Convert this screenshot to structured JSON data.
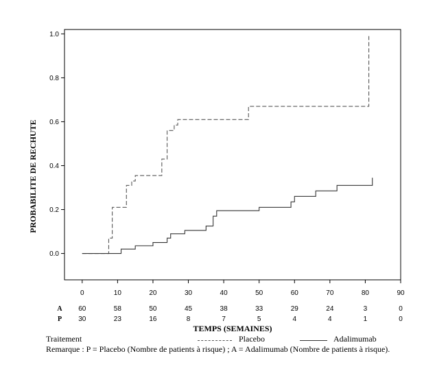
{
  "chart_data": {
    "type": "line",
    "step": true,
    "xlabel": "TEMPS (SEMAINES)",
    "ylabel": "PROBABILITE DE RECHUTE",
    "xlim": [
      -5,
      90
    ],
    "ylim": [
      -0.12,
      1.02
    ],
    "xticks": [
      0,
      10,
      20,
      30,
      40,
      50,
      60,
      70,
      80,
      90
    ],
    "xtick_labels": [
      "0",
      "10",
      "20",
      "30",
      "40",
      "50",
      "60",
      "70",
      "80",
      "90"
    ],
    "yticks": [
      0.0,
      0.2,
      0.4,
      0.6,
      0.8,
      1.0
    ],
    "ytick_labels": [
      "0.0",
      "0.2",
      "0.4",
      "0.6",
      "0.8",
      "1.0"
    ],
    "grid": false,
    "series": [
      {
        "name": "Placebo",
        "style": "dashed",
        "color": "#555555",
        "x": [
          0,
          7,
          7.5,
          8.5,
          10,
          12,
          12.5,
          14,
          15,
          22,
          22.5,
          23.5,
          24,
          26,
          27,
          47,
          81,
          81
        ],
        "y": [
          0,
          0,
          0.07,
          0.21,
          0.21,
          0.21,
          0.31,
          0.33,
          0.355,
          0.355,
          0.43,
          0.43,
          0.56,
          0.585,
          0.61,
          0.67,
          0.67,
          0.99
        ]
      },
      {
        "name": "Adalimumab",
        "style": "solid",
        "color": "#333333",
        "x": [
          0,
          7,
          10,
          11,
          15,
          20,
          24,
          25,
          29,
          35,
          37,
          38,
          50,
          59,
          60,
          66,
          72,
          82
        ],
        "y": [
          0,
          0,
          0,
          0.02,
          0.035,
          0.05,
          0.07,
          0.09,
          0.105,
          0.125,
          0.17,
          0.195,
          0.21,
          0.235,
          0.26,
          0.285,
          0.31,
          0.345
        ]
      }
    ],
    "risk_table": {
      "times": [
        "0",
        "10",
        "20",
        "30",
        "40",
        "50",
        "60",
        "70",
        "80",
        "90"
      ],
      "rows": [
        {
          "label": "A",
          "values": [
            "60",
            "58",
            "50",
            "45",
            "38",
            "33",
            "29",
            "24",
            "3",
            "0"
          ]
        },
        {
          "label": "P",
          "values": [
            "30",
            "23",
            "16",
            "8",
            "7",
            "5",
            "4",
            "4",
            "1",
            "0"
          ]
        }
      ]
    }
  },
  "legend": {
    "title": "Traitement",
    "placebo_label": "Placebo",
    "adalimumab_label": "Adalimumab"
  },
  "note": "Remarque : P = Placebo (Nombre de patients à risque) ; A = Adalimumab (Nombre de patients à risque)."
}
